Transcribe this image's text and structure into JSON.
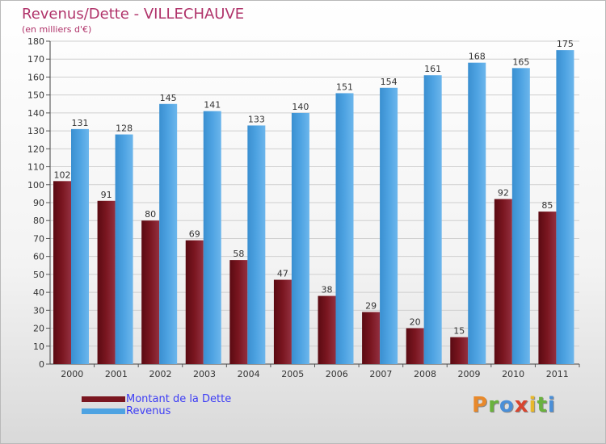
{
  "title": "Revenus/Dette - VILLECHAUVE",
  "subtitle": "(en milliers d'€)",
  "logo_letters": [
    "P",
    "r",
    "o",
    "x",
    "i",
    "t",
    "i"
  ],
  "colors": {
    "title": "#b0336a",
    "dette": "#7a1620",
    "revenus": "#4ea3e2",
    "legend_text": "#3d3df5"
  },
  "chart_data": {
    "type": "bar",
    "title": "Revenus/Dette - VILLECHAUVE",
    "ylabel": "(en milliers d'€)",
    "xlabel": "",
    "ylim": [
      0,
      180
    ],
    "yticks": [
      0,
      10,
      20,
      30,
      40,
      50,
      60,
      70,
      80,
      90,
      100,
      110,
      120,
      130,
      140,
      150,
      160,
      170,
      180
    ],
    "grid": true,
    "legend_position": "bottom-left",
    "categories": [
      "2000",
      "2001",
      "2002",
      "2003",
      "2004",
      "2005",
      "2006",
      "2007",
      "2008",
      "2009",
      "2010",
      "2011"
    ],
    "series": [
      {
        "name": "Montant de la Dette",
        "color": "#7a1620",
        "values": [
          102,
          91,
          80,
          69,
          58,
          47,
          38,
          29,
          20,
          15,
          92,
          85
        ]
      },
      {
        "name": "Revenus",
        "color": "#4ea3e2",
        "values": [
          131,
          128,
          145,
          141,
          133,
          140,
          151,
          154,
          161,
          168,
          165,
          175
        ]
      }
    ]
  }
}
